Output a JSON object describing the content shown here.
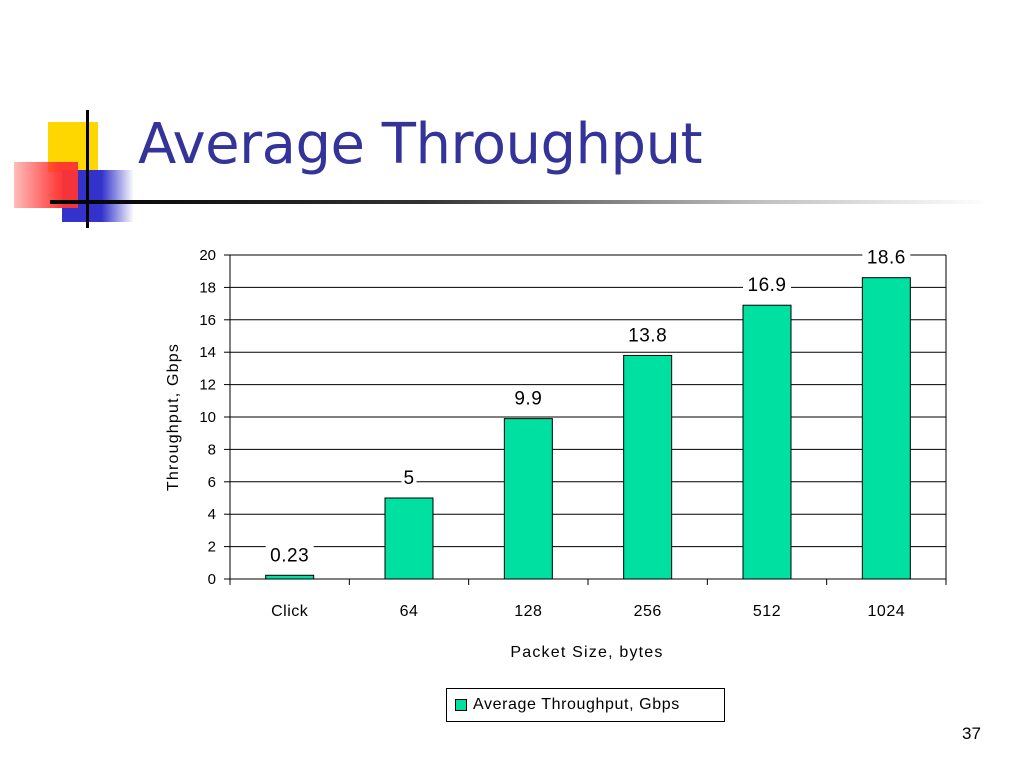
{
  "slide": {
    "title": "Average Throughput",
    "page_number": "37"
  },
  "colors": {
    "bar_fill": "#00E0A0",
    "title": "#333399",
    "decor_yellow": "#FFD700",
    "decor_red": "#FF3333",
    "decor_blue": "#3333CC"
  },
  "chart_data": {
    "type": "bar",
    "categories": [
      "Click",
      "64",
      "128",
      "256",
      "512",
      "1024"
    ],
    "series": [
      {
        "name": "Average Throughput, Gbps",
        "values": [
          0.23,
          5,
          9.9,
          13.8,
          16.9,
          18.6
        ],
        "data_labels": [
          "0.23",
          "5",
          "9.9",
          "13.8",
          "16.9",
          "18.6"
        ]
      }
    ],
    "xlabel": "Packet Size, bytes",
    "ylabel": "Throughput, Gbps",
    "ylim": [
      0,
      20
    ],
    "yticks": [
      0,
      2,
      4,
      6,
      8,
      10,
      12,
      14,
      16,
      18,
      20
    ],
    "grid": true,
    "legend_position": "bottom"
  }
}
